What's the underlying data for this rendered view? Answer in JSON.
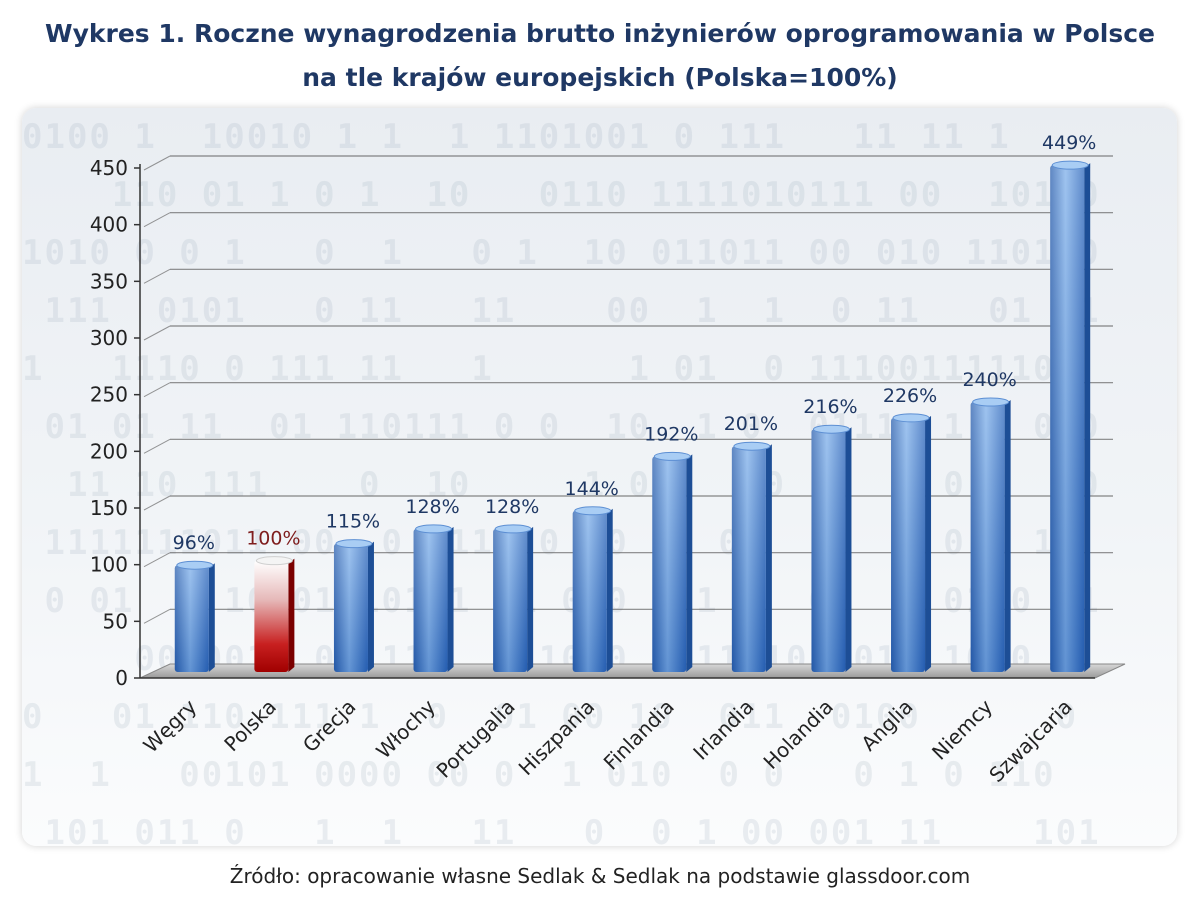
{
  "title": {
    "line1": "Wykres 1. Roczne wynagrodzenia brutto inżynierów oprogramowania w Polsce",
    "line2": "na tle krajów europejskich (Polska=100%)"
  },
  "source": "Źródło: opracowanie własne Sedlak & Sedlak na podstawie glassdoor.com",
  "colors": {
    "bar": "#3a78c8",
    "highlight": "#c00000",
    "value_label": "#1f3864",
    "highlight_label": "#7f1d1d",
    "axis": "#333333"
  },
  "chart_data": {
    "type": "bar",
    "categories": [
      "Węgry",
      "Polska",
      "Grecja",
      "Włochy",
      "Portugalia",
      "Hiszpania",
      "Finlandia",
      "Irlandia",
      "Holandia",
      "Anglia",
      "Niemcy",
      "Szwajcaria"
    ],
    "values": [
      96,
      100,
      115,
      128,
      128,
      144,
      192,
      201,
      216,
      226,
      240,
      449
    ],
    "data_labels": [
      "96%",
      "100%",
      "115%",
      "128%",
      "128%",
      "144%",
      "192%",
      "201%",
      "216%",
      "226%",
      "240%",
      "449%"
    ],
    "highlight_category": "Polska",
    "ylim": [
      0,
      450
    ],
    "yticks": [
      0,
      50,
      100,
      150,
      200,
      250,
      300,
      350,
      400,
      450
    ],
    "grid": true,
    "xlabel": "",
    "ylabel": ""
  }
}
